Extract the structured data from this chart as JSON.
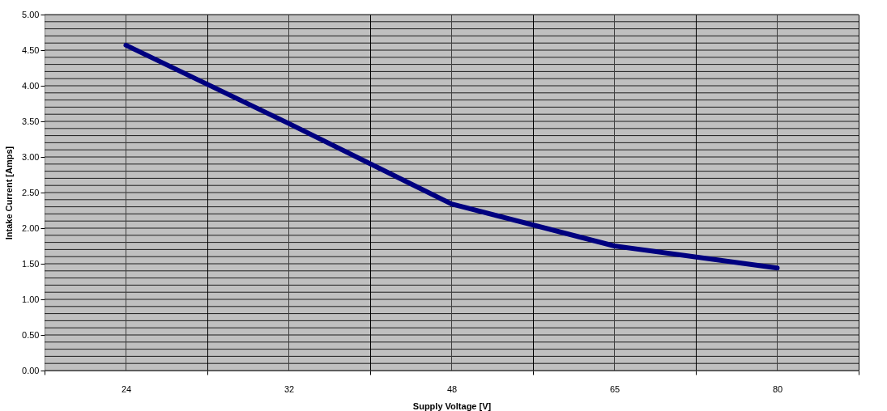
{
  "chart_data": {
    "type": "line",
    "xlabel": "Supply Voltage [V]",
    "ylabel": "Intake Current [Amps]",
    "categories": [
      "24",
      "32",
      "48",
      "65",
      "80"
    ],
    "series": [
      {
        "color": "#000080",
        "values": [
          4.57,
          3.47,
          2.34,
          1.75,
          1.44
        ]
      }
    ],
    "ylim": [
      0,
      5
    ],
    "yticks": [
      {
        "value": 0,
        "label": "0.00"
      },
      {
        "value": 0.5,
        "label": "0.50"
      },
      {
        "value": 1,
        "label": "1.00"
      },
      {
        "value": 1.5,
        "label": "1.50"
      },
      {
        "value": 2,
        "label": "2.00"
      },
      {
        "value": 2.5,
        "label": "2.50"
      },
      {
        "value": 3,
        "label": "3.00"
      },
      {
        "value": 3.5,
        "label": "3.50"
      },
      {
        "value": 4,
        "label": "4.00"
      },
      {
        "value": 4.5,
        "label": "4.50"
      },
      {
        "value": 5,
        "label": "5.00"
      }
    ],
    "grid": true,
    "legend": false,
    "marker": "none",
    "line_style": "solid"
  }
}
